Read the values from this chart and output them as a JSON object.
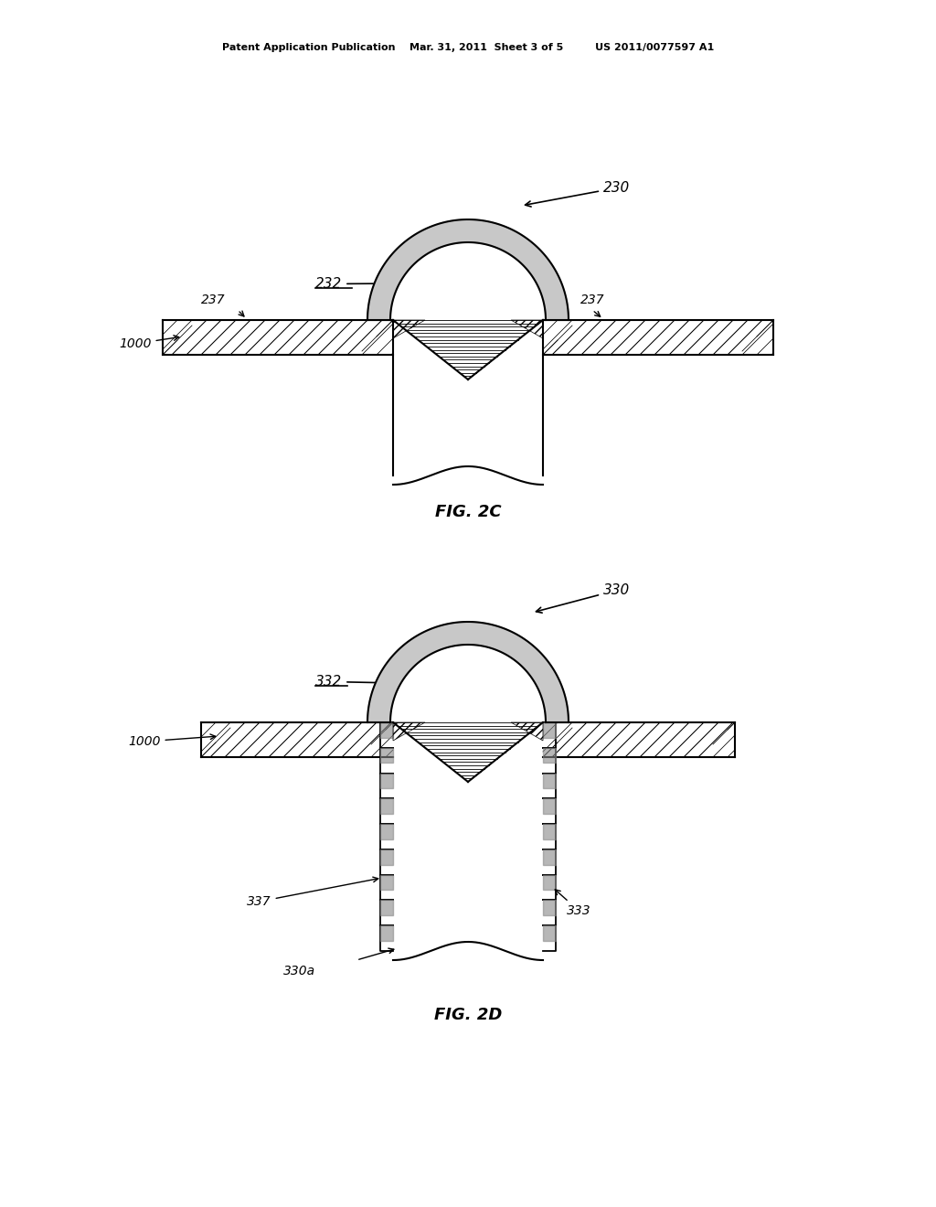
{
  "bg_color": "#ffffff",
  "line_color": "#000000",
  "header_text": "Patent Application Publication    Mar. 31, 2011  Sheet 3 of 5         US 2011/0077597 A1",
  "fig2c_label": "FIG. 2C",
  "fig2d_label": "FIG. 2D"
}
